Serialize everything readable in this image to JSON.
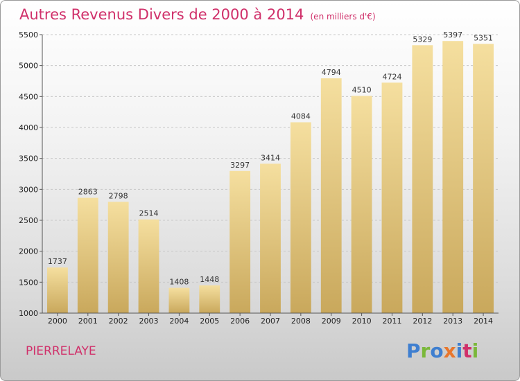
{
  "title": "Autres Revenus Divers de 2000 à 2014",
  "unit_note": "(en milliers d'€)",
  "commune": "PIERRELAYE",
  "logo_text": [
    "P",
    "r",
    "o",
    "x",
    "i",
    "t",
    "i"
  ],
  "colors": {
    "title": "#d0306a",
    "bar_top": "#f5df9f",
    "bar_bottom": "#c9a85c"
  },
  "chart_data": {
    "type": "bar",
    "title": "Autres Revenus Divers de 2000 à 2014",
    "subtitle": "(en milliers d'€)",
    "categories": [
      "2000",
      "2001",
      "2002",
      "2003",
      "2004",
      "2005",
      "2006",
      "2007",
      "2008",
      "2009",
      "2010",
      "2011",
      "2012",
      "2013",
      "2014"
    ],
    "values": [
      1737,
      2863,
      2798,
      2514,
      1408,
      1448,
      3297,
      3414,
      4084,
      4794,
      4510,
      4724,
      5329,
      5397,
      5351
    ],
    "ylim": [
      1000,
      5500
    ],
    "yticks": [
      1000,
      1500,
      2000,
      2500,
      3000,
      3500,
      4000,
      4500,
      5000,
      5500
    ],
    "grid": true,
    "xlabel": "",
    "ylabel": ""
  }
}
